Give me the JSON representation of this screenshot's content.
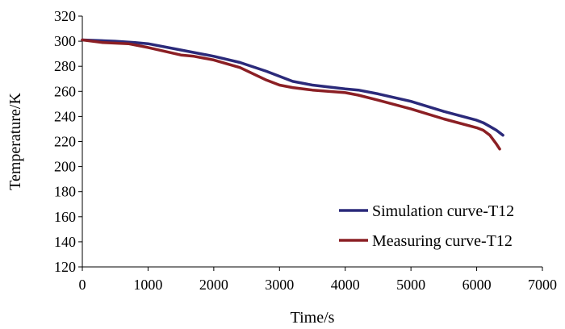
{
  "chart_data": {
    "type": "line",
    "title": "",
    "xlabel": "Time/s",
    "ylabel": "Temperature/K",
    "xlim": [
      0,
      7000
    ],
    "ylim": [
      120,
      320
    ],
    "x_ticks": [
      0,
      1000,
      2000,
      3000,
      4000,
      5000,
      6000,
      7000
    ],
    "y_ticks": [
      120,
      140,
      160,
      180,
      200,
      220,
      240,
      260,
      280,
      300,
      320
    ],
    "grid": false,
    "legend_position": "bottom-right",
    "series": [
      {
        "name": "Simulation curve-T12",
        "color": "#2b2a7a",
        "x": [
          0,
          500,
          800,
          1000,
          1500,
          2000,
          2400,
          2800,
          3000,
          3200,
          3500,
          4000,
          4200,
          4500,
          5000,
          5500,
          6000,
          6100,
          6200,
          6300,
          6400
        ],
        "y": [
          301,
          300,
          299,
          298,
          293,
          288,
          283,
          276,
          272,
          268,
          265,
          262,
          261,
          258,
          252,
          244,
          237,
          235,
          232,
          229,
          225
        ]
      },
      {
        "name": "Measuring curve-T12",
        "color": "#8b1f24",
        "x": [
          0,
          300,
          700,
          1000,
          1500,
          1700,
          2000,
          2400,
          2800,
          3000,
          3200,
          3500,
          4000,
          4200,
          4500,
          5000,
          5500,
          6000,
          6100,
          6200,
          6300,
          6350
        ],
        "y": [
          301,
          299,
          298,
          295,
          289,
          288,
          285,
          279,
          269,
          265,
          263,
          261,
          259,
          257,
          253,
          246,
          238,
          231,
          229,
          225,
          218,
          214
        ]
      }
    ]
  }
}
